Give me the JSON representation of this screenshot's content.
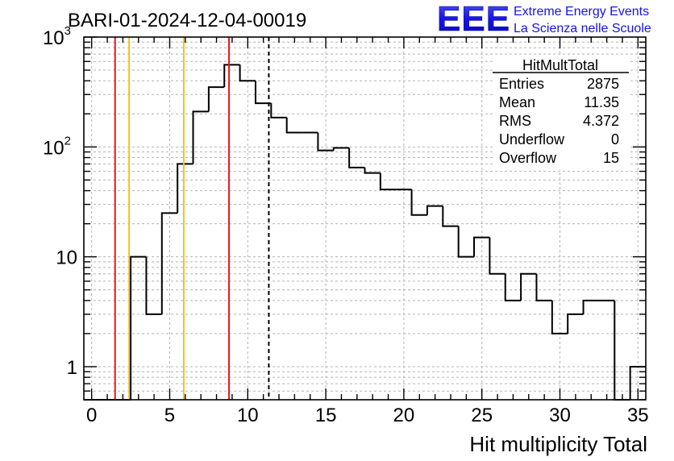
{
  "chart_data": {
    "type": "histogram",
    "title": "BARI-01-2024-12-04-00019",
    "xlabel": "Hit multiplicity Total",
    "ylabel": "",
    "yscale": "log",
    "xlim": [
      -0.5,
      35.5
    ],
    "ylim": [
      0.5,
      1000
    ],
    "grid": true,
    "bin_width": 1,
    "bins": [
      {
        "x0": -0.5,
        "count": 0
      },
      {
        "x0": 0.5,
        "count": 0
      },
      {
        "x0": 1.5,
        "count": 0
      },
      {
        "x0": 2.5,
        "count": 10
      },
      {
        "x0": 3.5,
        "count": 3
      },
      {
        "x0": 4.5,
        "count": 25
      },
      {
        "x0": 5.5,
        "count": 70
      },
      {
        "x0": 6.5,
        "count": 210
      },
      {
        "x0": 7.5,
        "count": 350
      },
      {
        "x0": 8.5,
        "count": 560
      },
      {
        "x0": 9.5,
        "count": 400
      },
      {
        "x0": 10.5,
        "count": 250
      },
      {
        "x0": 11.5,
        "count": 185
      },
      {
        "x0": 12.5,
        "count": 135
      },
      {
        "x0": 13.5,
        "count": 135
      },
      {
        "x0": 14.5,
        "count": 93
      },
      {
        "x0": 15.5,
        "count": 98
      },
      {
        "x0": 16.5,
        "count": 65
      },
      {
        "x0": 17.5,
        "count": 58
      },
      {
        "x0": 18.5,
        "count": 41
      },
      {
        "x0": 19.5,
        "count": 41
      },
      {
        "x0": 20.5,
        "count": 24
      },
      {
        "x0": 21.5,
        "count": 29
      },
      {
        "x0": 22.5,
        "count": 19
      },
      {
        "x0": 23.5,
        "count": 10
      },
      {
        "x0": 24.5,
        "count": 15
      },
      {
        "x0": 25.5,
        "count": 7
      },
      {
        "x0": 26.5,
        "count": 4
      },
      {
        "x0": 27.5,
        "count": 7
      },
      {
        "x0": 28.5,
        "count": 4
      },
      {
        "x0": 29.5,
        "count": 2
      },
      {
        "x0": 30.5,
        "count": 3
      },
      {
        "x0": 31.5,
        "count": 4
      },
      {
        "x0": 32.5,
        "count": 4
      },
      {
        "x0": 33.5,
        "count": 0
      },
      {
        "x0": 34.5,
        "count": 1
      }
    ],
    "x_ticks": [
      {
        "value": 0,
        "label": "0"
      },
      {
        "value": 5,
        "label": "5"
      },
      {
        "value": 10,
        "label": "10"
      },
      {
        "value": 15,
        "label": "15"
      },
      {
        "value": 20,
        "label": "20"
      },
      {
        "value": 25,
        "label": "25"
      },
      {
        "value": 30,
        "label": "30"
      },
      {
        "value": 35,
        "label": "35"
      }
    ],
    "y_ticks": [
      {
        "value": 1,
        "label": "1"
      },
      {
        "value": 10,
        "label": "10"
      },
      {
        "value": 100,
        "label": "10",
        "sup": "2"
      },
      {
        "value": 1000,
        "label": "10",
        "sup": "3"
      }
    ],
    "vertical_lines": [
      {
        "x": 1.5,
        "color": "#e8141c",
        "style": "solid"
      },
      {
        "x": 2.4,
        "color": "#f2c21b",
        "style": "solid"
      },
      {
        "x": 5.9,
        "color": "#f2c21b",
        "style": "solid"
      },
      {
        "x": 8.8,
        "color": "#e8141c",
        "style": "solid"
      },
      {
        "x": 11.35,
        "color": "#000000",
        "style": "dashed"
      }
    ],
    "stats_box": {
      "title": "HitMultTotal",
      "rows": [
        {
          "label": "Entries",
          "value": "2875"
        },
        {
          "label": "Mean",
          "value": "11.35"
        },
        {
          "label": "RMS",
          "value": "4.372"
        },
        {
          "label": "Underflow",
          "value": "0"
        },
        {
          "label": "Overflow",
          "value": "15"
        }
      ]
    }
  },
  "logo": {
    "text": "EEE",
    "line1": "Extreme Energy Events",
    "line2": "La Scienza nelle Scuole",
    "color": "#1414e6"
  }
}
